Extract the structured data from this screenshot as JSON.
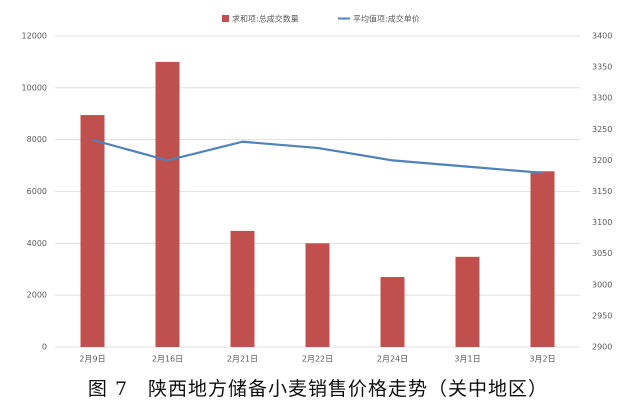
{
  "chart_data": {
    "type": "bar-line",
    "title": "图 7　陕西地方储备小麦销售价格走势（关中地区）",
    "categories": [
      "2月9日",
      "2月16日",
      "2月21日",
      "2月22日",
      "2月24日",
      "3月1日",
      "3月2日"
    ],
    "series": [
      {
        "name": "求和项:总成交数量",
        "color": "#c0504d",
        "type": "bar",
        "values": [
          8950,
          11000,
          4480,
          4000,
          2700,
          3480,
          6780
        ]
      },
      {
        "name": "平均值项:成交单价",
        "color": "#4f81bd",
        "type": "line",
        "axis": "y2",
        "values": [
          3233,
          3200,
          3230,
          3220,
          3200,
          3190,
          3180
        ]
      }
    ],
    "ylim": [
      0,
      12000
    ],
    "yticks": [
      0,
      2000,
      4000,
      6000,
      8000,
      10000,
      12000
    ],
    "y2lim": [
      2900,
      3400
    ],
    "y2ticks": [
      2900,
      2950,
      3000,
      3050,
      3100,
      3150,
      3200,
      3250,
      3300,
      3350,
      3400
    ],
    "grid": true
  }
}
